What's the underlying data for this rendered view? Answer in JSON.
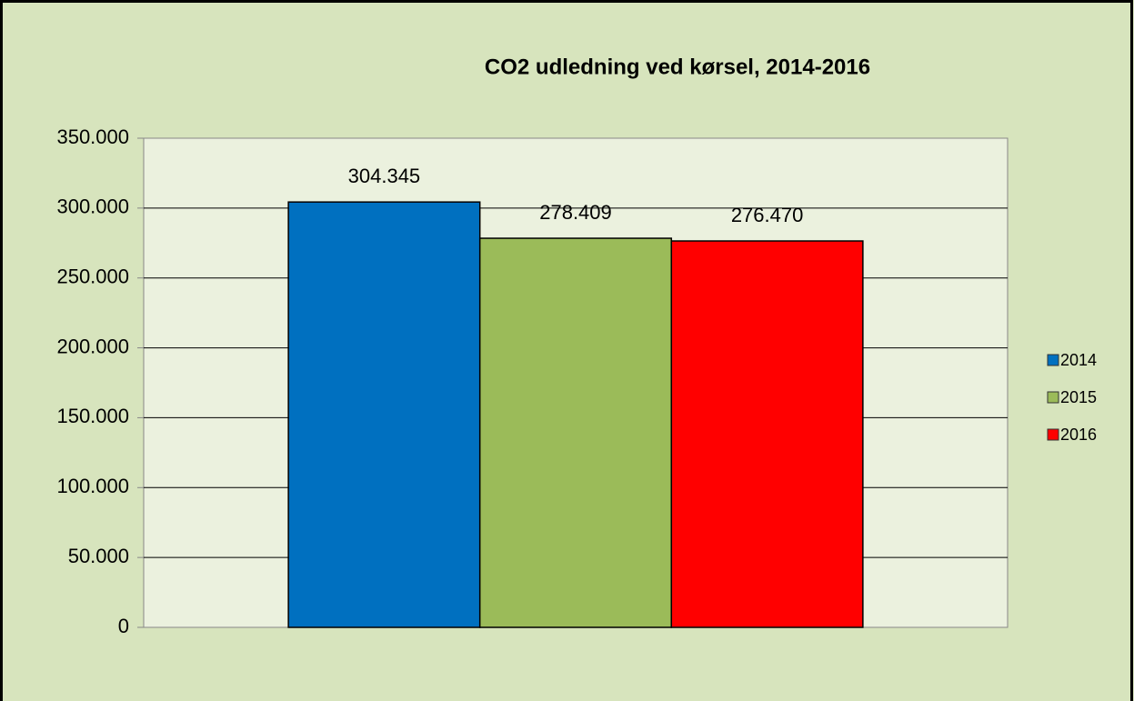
{
  "chart_data": {
    "type": "bar",
    "title": "CO2 udledning ved kørsel, 2014-2016",
    "categories": [
      null
    ],
    "series": [
      {
        "name": "2014",
        "color": "#0070c0",
        "values": [
          304345
        ],
        "value_labels": [
          "304.345"
        ]
      },
      {
        "name": "2015",
        "color": "#9bbb59",
        "values": [
          278409
        ],
        "value_labels": [
          "278.409"
        ]
      },
      {
        "name": "2016",
        "color": "#ff0000",
        "values": [
          276470
        ],
        "value_labels": [
          "276.470"
        ]
      }
    ],
    "ylim": [
      0,
      350000
    ],
    "yticks": [
      0,
      {
        "value": 50000,
        "label": "50.000"
      },
      {
        "value": 100000,
        "label": "100.000"
      },
      {
        "value": 150000,
        "label": "150.000"
      },
      {
        "value": 200000,
        "label": "200.000"
      },
      {
        "value": 250000,
        "label": "250.000"
      },
      {
        "value": 300000,
        "label": "300.000"
      },
      {
        "value": 350000,
        "label": "350.000"
      }
    ],
    "grid": true,
    "legend": "right"
  }
}
